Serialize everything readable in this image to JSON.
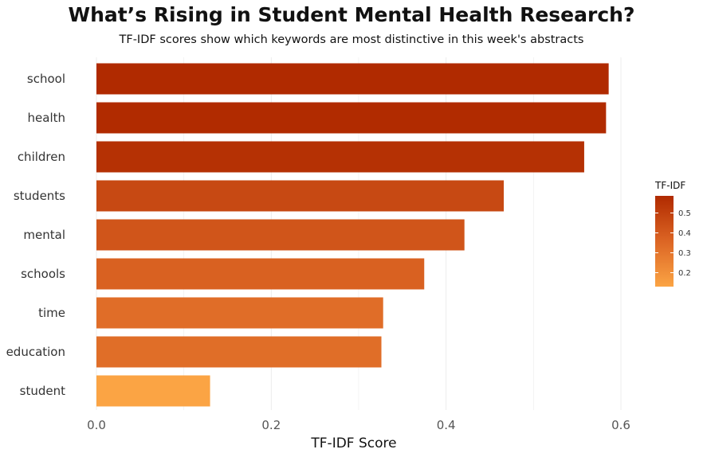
{
  "chart_data": {
    "type": "bar",
    "orientation": "horizontal",
    "title": "What’s Rising in Student Mental Health Research?",
    "subtitle": "TF-IDF scores show which keywords are most distinctive in this week's abstracts",
    "xlabel": "TF-IDF Score",
    "ylabel": "",
    "xlim": [
      0,
      0.62
    ],
    "x_ticks": [
      0.0,
      0.2,
      0.4,
      0.6
    ],
    "x_tick_labels": [
      "0.0",
      "0.2",
      "0.4",
      "0.6"
    ],
    "grid": true,
    "categories": [
      "school",
      "health",
      "children",
      "students",
      "mental",
      "schools",
      "time",
      "education",
      "student"
    ],
    "values": [
      0.586,
      0.583,
      0.558,
      0.466,
      0.421,
      0.375,
      0.328,
      0.326,
      0.13
    ],
    "legend": {
      "title": "TF-IDF",
      "placement": "right",
      "ticks": [
        0.2,
        0.3,
        0.4,
        0.5
      ],
      "tick_labels": [
        "0.2",
        "0.3",
        "0.4",
        "0.5"
      ],
      "range": [
        0.13,
        0.586
      ],
      "color_low": "#fba444",
      "color_mid": "#dc6524",
      "color_high": "#b02a00"
    }
  }
}
